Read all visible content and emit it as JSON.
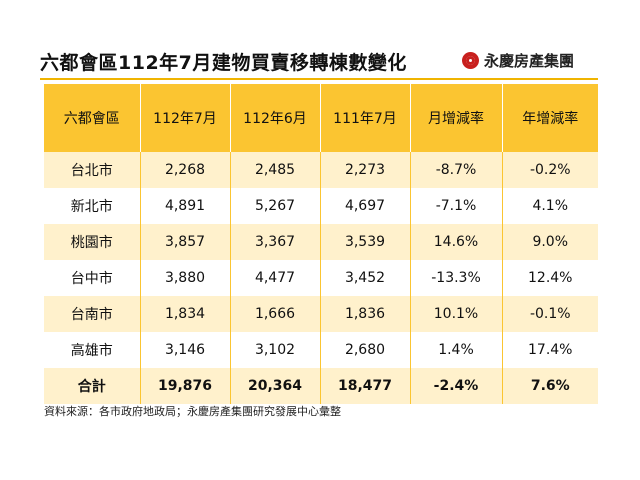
{
  "title": "六都會區112年7月建物買賣移轉棟數變化",
  "brand": {
    "name": "永慶房產集團",
    "logo": "yungching-logo"
  },
  "colors": {
    "header": "#fbc531",
    "stripe": "#fff1cc",
    "logo": "#c8201e"
  },
  "table": {
    "headers": [
      "六都會區",
      "112年7月",
      "112年6月",
      "111年7月",
      "月增減率",
      "年增減率"
    ],
    "rows": [
      [
        "台北市",
        "2,268",
        "2,485",
        "2,273",
        "-8.7%",
        "-0.2%"
      ],
      [
        "新北市",
        "4,891",
        "5,267",
        "4,697",
        "-7.1%",
        "4.1%"
      ],
      [
        "桃園市",
        "3,857",
        "3,367",
        "3,539",
        "14.6%",
        "9.0%"
      ],
      [
        "台中市",
        "3,880",
        "4,477",
        "3,452",
        "-13.3%",
        "12.4%"
      ],
      [
        "台南市",
        "1,834",
        "1,666",
        "1,836",
        "10.1%",
        "-0.1%"
      ],
      [
        "高雄市",
        "3,146",
        "3,102",
        "2,680",
        "1.4%",
        "17.4%"
      ]
    ],
    "total": [
      "合計",
      "19,876",
      "20,364",
      "18,477",
      "-2.4%",
      "7.6%"
    ]
  },
  "source": "資料來源：各市政府地政局；永慶房產集團研究發展中心彙整"
}
